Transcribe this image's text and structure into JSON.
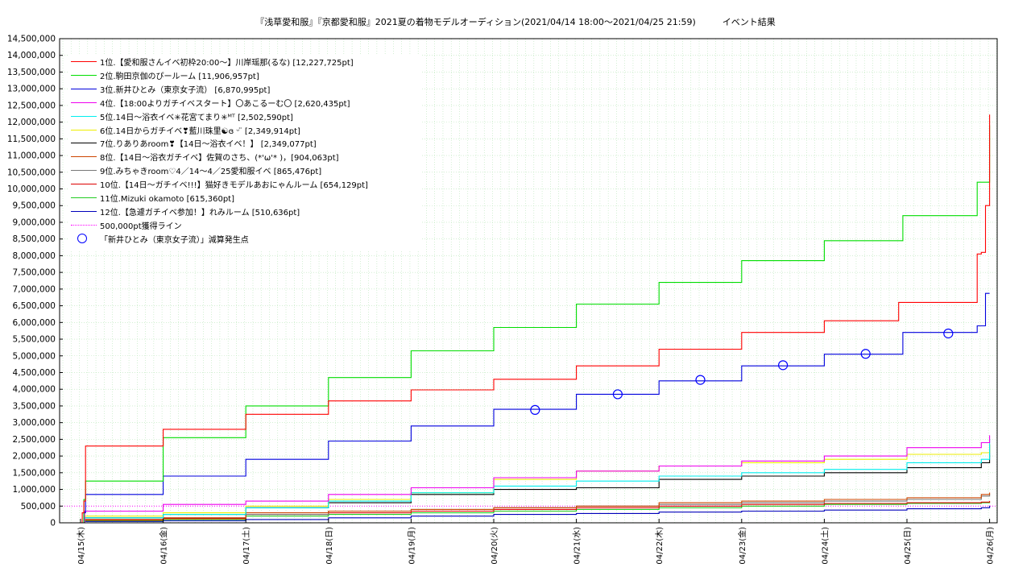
{
  "chart_data": {
    "type": "line",
    "title": "『浅草愛和服』『京都愛和服』2021夏の着物モデルオーディション(2021/04/14 18:00〜2021/04/25 21:59)　　　イベント結果",
    "x_ticks": [
      "04/15(木)",
      "04/16(金)",
      "04/17(土)",
      "04/18(日)",
      "04/19(月)",
      "04/20(火)",
      "04/21(水)",
      "04/22(木)",
      "04/23(金)",
      "04/24(土)",
      "04/25(日)",
      "04/26(月)"
    ],
    "x_range": [
      "2021-04-14 18:00",
      "2021-04-26 00:00"
    ],
    "y_ticks": [
      "0",
      "500,000",
      "1,000,000",
      "1,500,000",
      "2,000,000",
      "2,500,000",
      "3,000,000",
      "3,500,000",
      "4,000,000",
      "4,500,000",
      "5,000,000",
      "5,500,000",
      "6,000,000",
      "6,500,000",
      "7,000,000",
      "7,500,000",
      "8,000,000",
      "8,500,000",
      "9,000,000",
      "9,500,000",
      "10,000,000",
      "10,500,000",
      "11,000,000",
      "11,500,000",
      "12,000,000",
      "12,500,000",
      "13,000,000",
      "13,500,000",
      "14,000,000",
      "14,500,000"
    ],
    "ylim": [
      0,
      14500000
    ],
    "grid": true,
    "legend_position": "top-left",
    "series": [
      {
        "name": "1位.【愛和服さんイベ初枠20:00〜】川岸瑶那(るな) [12,227,725pt]",
        "color": "#ff0000",
        "points": [
          [
            0,
            0
          ],
          [
            0.02,
            300000
          ],
          [
            0.04,
            650000
          ],
          [
            0.06,
            2300000
          ],
          [
            0.9,
            2300000
          ],
          [
            1.0,
            2800000
          ],
          [
            1.8,
            2800000
          ],
          [
            2.0,
            3250000
          ],
          [
            2.85,
            3250000
          ],
          [
            3.0,
            3650000
          ],
          [
            3.9,
            3650000
          ],
          [
            4.0,
            3980000
          ],
          [
            4.9,
            3980000
          ],
          [
            5.0,
            4300000
          ],
          [
            5.85,
            4300000
          ],
          [
            6.0,
            4700000
          ],
          [
            6.85,
            4700000
          ],
          [
            7.0,
            5200000
          ],
          [
            7.85,
            5200000
          ],
          [
            8.0,
            5700000
          ],
          [
            8.85,
            5700000
          ],
          [
            9.0,
            6050000
          ],
          [
            9.8,
            6050000
          ],
          [
            9.9,
            6600000
          ],
          [
            10.75,
            6600000
          ],
          [
            10.85,
            8050000
          ],
          [
            10.9,
            8100000
          ],
          [
            10.95,
            9500000
          ],
          [
            11.0,
            12227725
          ]
        ]
      },
      {
        "name": "2位.駒田京伽のぴールーム [11,906,957pt]",
        "color": "#00dd00",
        "points": [
          [
            0,
            0
          ],
          [
            0.04,
            700000
          ],
          [
            0.06,
            1250000
          ],
          [
            0.8,
            1250000
          ],
          [
            1.0,
            2550000
          ],
          [
            1.75,
            2550000
          ],
          [
            2.0,
            3500000
          ],
          [
            2.75,
            3500000
          ],
          [
            3.0,
            4350000
          ],
          [
            3.9,
            4350000
          ],
          [
            4.0,
            5150000
          ],
          [
            4.85,
            5150000
          ],
          [
            5.0,
            5850000
          ],
          [
            5.75,
            5850000
          ],
          [
            6.0,
            6550000
          ],
          [
            6.8,
            6550000
          ],
          [
            7.0,
            7200000
          ],
          [
            7.8,
            7200000
          ],
          [
            8.0,
            7850000
          ],
          [
            8.8,
            7850000
          ],
          [
            9.0,
            8450000
          ],
          [
            9.85,
            8450000
          ],
          [
            9.95,
            9200000
          ],
          [
            10.75,
            9200000
          ],
          [
            10.85,
            10200000
          ],
          [
            10.95,
            10200000
          ],
          [
            11.0,
            11906957
          ]
        ]
      },
      {
        "name": "3位.新井ひとみ（東京女子流） [6,870,995pt]",
        "color": "#0000dd",
        "points": [
          [
            0,
            0
          ],
          [
            0.04,
            300000
          ],
          [
            0.06,
            850000
          ],
          [
            0.9,
            850000
          ],
          [
            1.0,
            1400000
          ],
          [
            1.8,
            1400000
          ],
          [
            2.0,
            1900000
          ],
          [
            2.8,
            1900000
          ],
          [
            3.0,
            2450000
          ],
          [
            3.8,
            2450000
          ],
          [
            4.0,
            2900000
          ],
          [
            4.8,
            2900000
          ],
          [
            5.0,
            3400000
          ],
          [
            5.9,
            3400000
          ],
          [
            6.0,
            3850000
          ],
          [
            6.9,
            3850000
          ],
          [
            7.0,
            4250000
          ],
          [
            7.85,
            4250000
          ],
          [
            8.0,
            4700000
          ],
          [
            8.85,
            4700000
          ],
          [
            9.0,
            5050000
          ],
          [
            9.8,
            5050000
          ],
          [
            9.95,
            5700000
          ],
          [
            10.75,
            5700000
          ],
          [
            10.85,
            5900000
          ],
          [
            10.95,
            6870995
          ],
          [
            11.0,
            6870995
          ]
        ]
      },
      {
        "name": "4位.【18:00よりガチイベスタート】〇あこるーむ〇 [2,620,435pt]",
        "color": "#ee00ee",
        "points": [
          [
            0,
            0
          ],
          [
            0.05,
            350000
          ],
          [
            1.0,
            550000
          ],
          [
            2.0,
            650000
          ],
          [
            3.0,
            850000
          ],
          [
            4.0,
            1050000
          ],
          [
            5.0,
            1350000
          ],
          [
            6.0,
            1550000
          ],
          [
            7.0,
            1700000
          ],
          [
            8.0,
            1850000
          ],
          [
            9.0,
            2000000
          ],
          [
            10.0,
            2250000
          ],
          [
            10.9,
            2400000
          ],
          [
            11.0,
            2620435
          ]
        ]
      },
      {
        "name": "5位.14日〜浴衣イベ✳︎花宮てまり✳︎ᴹᵀ [2,502,590pt]",
        "color": "#00eeee",
        "points": [
          [
            0,
            0
          ],
          [
            0.05,
            150000
          ],
          [
            1.0,
            250000
          ],
          [
            2.0,
            450000
          ],
          [
            3.0,
            650000
          ],
          [
            4.0,
            900000
          ],
          [
            5.0,
            1100000
          ],
          [
            6.0,
            1250000
          ],
          [
            7.0,
            1400000
          ],
          [
            8.0,
            1500000
          ],
          [
            9.0,
            1600000
          ],
          [
            10.0,
            1800000
          ],
          [
            10.9,
            1900000
          ],
          [
            11.0,
            2502590
          ]
        ]
      },
      {
        "name": "6位.14日からガチイベ❣藍川珠里☯︎ɞ ᵕ ̈ [2,349,914pt]",
        "color": "#eeee00",
        "points": [
          [
            0,
            0
          ],
          [
            0.05,
            200000
          ],
          [
            1.0,
            300000
          ],
          [
            2.0,
            500000
          ],
          [
            3.0,
            700000
          ],
          [
            4.0,
            900000
          ],
          [
            5.0,
            1300000
          ],
          [
            6.0,
            1550000
          ],
          [
            7.0,
            1700000
          ],
          [
            8.0,
            1800000
          ],
          [
            9.0,
            1900000
          ],
          [
            10.0,
            2050000
          ],
          [
            10.9,
            2100000
          ],
          [
            11.0,
            2349914
          ]
        ]
      },
      {
        "name": "7位.りありあroom❣【14日〜浴衣イベ！】 [2,349,077pt]",
        "color": "#000000",
        "points": [
          [
            0,
            0
          ],
          [
            0.05,
            150000
          ],
          [
            1.0,
            250000
          ],
          [
            2.0,
            450000
          ],
          [
            3.0,
            600000
          ],
          [
            4.0,
            850000
          ],
          [
            5.0,
            1000000
          ],
          [
            6.0,
            1050000
          ],
          [
            7.0,
            1300000
          ],
          [
            8.0,
            1400000
          ],
          [
            9.0,
            1500000
          ],
          [
            10.0,
            1650000
          ],
          [
            10.9,
            1800000
          ],
          [
            11.0,
            2349077
          ]
        ]
      },
      {
        "name": "8位.【14日〜浴衣ガチイベ】佐賀のさち、(*'ω'* )，[904,063pt]",
        "color": "#cc4400",
        "points": [
          [
            0,
            0
          ],
          [
            0.05,
            100000
          ],
          [
            1.0,
            150000
          ],
          [
            2.0,
            300000
          ],
          [
            3.0,
            350000
          ],
          [
            4.0,
            400000
          ],
          [
            5.0,
            450000
          ],
          [
            6.0,
            500000
          ],
          [
            7.0,
            600000
          ],
          [
            8.0,
            650000
          ],
          [
            9.0,
            700000
          ],
          [
            10.0,
            750000
          ],
          [
            10.9,
            850000
          ],
          [
            11.0,
            904063
          ]
        ]
      },
      {
        "name": "9位.みちゃきroom♡4／14〜4／25愛和服イベ [865,476pt]",
        "color": "#777777",
        "points": [
          [
            0,
            0
          ],
          [
            0.05,
            100000
          ],
          [
            1.0,
            150000
          ],
          [
            2.0,
            250000
          ],
          [
            3.0,
            350000
          ],
          [
            4.0,
            400000
          ],
          [
            5.0,
            450000
          ],
          [
            6.0,
            500000
          ],
          [
            7.0,
            550000
          ],
          [
            8.0,
            600000
          ],
          [
            9.0,
            650000
          ],
          [
            10.0,
            700000
          ],
          [
            10.9,
            800000
          ],
          [
            11.0,
            865476
          ]
        ]
      },
      {
        "name": "10位.【14日〜ガチイベ!!!】猫好きモデルあおにゃんルーム [654,129pt]",
        "color": "#dd0000",
        "points": [
          [
            0,
            0
          ],
          [
            0.05,
            80000
          ],
          [
            1.0,
            120000
          ],
          [
            2.0,
            250000
          ],
          [
            3.0,
            300000
          ],
          [
            4.0,
            350000
          ],
          [
            5.0,
            400000
          ],
          [
            6.0,
            450000
          ],
          [
            7.0,
            500000
          ],
          [
            8.0,
            550000
          ],
          [
            9.0,
            580000
          ],
          [
            10.0,
            600000
          ],
          [
            10.9,
            620000
          ],
          [
            11.0,
            654129
          ]
        ]
      },
      {
        "name": "11位.Mizuki okamoto [615,360pt]",
        "color": "#22cc22",
        "points": [
          [
            0,
            0
          ],
          [
            0.05,
            60000
          ],
          [
            1.0,
            100000
          ],
          [
            2.0,
            200000
          ],
          [
            3.0,
            250000
          ],
          [
            4.0,
            300000
          ],
          [
            5.0,
            350000
          ],
          [
            6.0,
            400000
          ],
          [
            7.0,
            450000
          ],
          [
            8.0,
            500000
          ],
          [
            9.0,
            550000
          ],
          [
            10.0,
            580000
          ],
          [
            10.9,
            600000
          ],
          [
            11.0,
            615360
          ]
        ]
      },
      {
        "name": "12位.【急遽ガチイベ参加！】れみルーム [510,636pt]",
        "color": "#0000bb",
        "points": [
          [
            0,
            0
          ],
          [
            0.05,
            40000
          ],
          [
            1.0,
            60000
          ],
          [
            2.0,
            100000
          ],
          [
            3.0,
            150000
          ],
          [
            4.0,
            200000
          ],
          [
            5.0,
            250000
          ],
          [
            6.0,
            280000
          ],
          [
            7.0,
            320000
          ],
          [
            8.0,
            350000
          ],
          [
            9.0,
            380000
          ],
          [
            10.0,
            420000
          ],
          [
            10.9,
            450000
          ],
          [
            11.0,
            510636
          ]
        ]
      }
    ],
    "reference_line": {
      "name": "500,000pt獲得ライン",
      "value": 500000,
      "color": "#ff00ff",
      "style": "dotted"
    },
    "markers": {
      "name": "「新井ひとみ（東京女子流）」減算発生点",
      "color": "#0000ff",
      "points": [
        [
          5.5,
          3380000
        ],
        [
          6.5,
          3850000
        ],
        [
          7.5,
          4280000
        ],
        [
          8.5,
          4720000
        ],
        [
          9.5,
          5060000
        ],
        [
          10.5,
          5670000
        ]
      ]
    }
  }
}
